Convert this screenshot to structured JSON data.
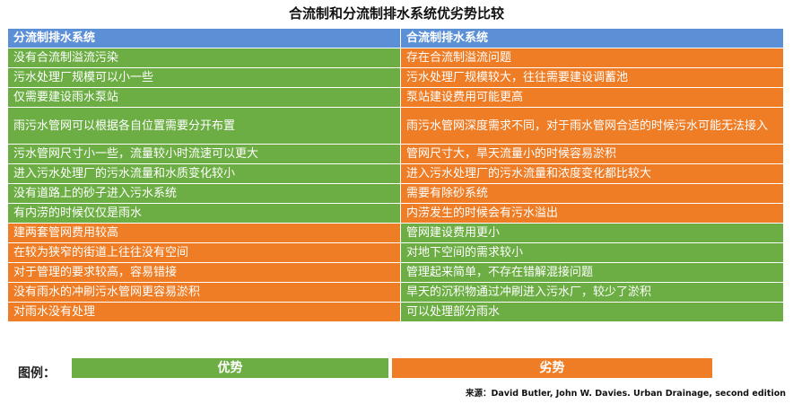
{
  "title": "合流制和分流制排水系统优劣势比较",
  "headers": [
    "分流制排水系统",
    "合流制排水系统"
  ],
  "colors": {
    "advantage": "#6cae44",
    "disadvantage": "#ef7d26",
    "header": "#5b8fd6"
  },
  "rows": [
    {
      "left": "没有合流制溢流污染",
      "left_type": "advantage",
      "right": "存在合流制溢流问题",
      "right_type": "disadvantage"
    },
    {
      "left": "污水处理厂规模可以小一些",
      "left_type": "advantage",
      "right": "污水处理厂规模较大，往往需要建设调蓄池",
      "right_type": "disadvantage"
    },
    {
      "left": "仅需要建设雨水泵站",
      "left_type": "advantage",
      "right": "泵站建设费用可能更高",
      "right_type": "disadvantage"
    },
    {
      "left": "雨污水管网可以根据各自位置需要分开布置",
      "left_type": "advantage",
      "right": "雨污水管网深度需求不同，对于雨水管网合适的时候污水可能无法接入",
      "right_type": "disadvantage"
    },
    {
      "left": "污水管网尺寸小一些，流量较小时流速可以更大",
      "left_type": "advantage",
      "right": "管网尺寸大，旱天流量小的时候容易淤积",
      "right_type": "disadvantage"
    },
    {
      "left": "进入污水处理厂的污水流量和水质变化较小",
      "left_type": "advantage",
      "right": "进入污水处理厂的污水流量和浓度变化都比较大",
      "right_type": "disadvantage"
    },
    {
      "left": "没有道路上的砂子进入污水系统",
      "left_type": "advantage",
      "right": "需要有除砂系统",
      "right_type": "disadvantage"
    },
    {
      "left": "有内涝的时候仅仅是雨水",
      "left_type": "advantage",
      "right": "内涝发生的时候会有污水溢出",
      "right_type": "disadvantage"
    },
    {
      "left": "建两套管网费用较高",
      "left_type": "disadvantage",
      "right": "管网建设费用更小",
      "right_type": "advantage"
    },
    {
      "left": "在较为狭窄的街道上往往没有空间",
      "left_type": "disadvantage",
      "right": "对地下空间的需求较小",
      "right_type": "advantage"
    },
    {
      "left": "对于管理的要求较高，容易错接",
      "left_type": "disadvantage",
      "right": "管理起来简单，不存在错解混接问题",
      "right_type": "advantage"
    },
    {
      "left": "没有雨水的冲刷污水管网更容易淤积",
      "left_type": "disadvantage",
      "right": "旱天的沉积物通过冲刷进入污水厂，较少了淤积",
      "right_type": "advantage"
    },
    {
      "left": "对雨水没有处理",
      "left_type": "disadvantage",
      "right": "可以处理部分雨水",
      "right_type": "advantage"
    }
  ],
  "legend": {
    "label": "图例：",
    "advantage": "优势",
    "disadvantage": "劣势"
  },
  "source": "来源：David Butler, John W. Davies. Urban Drainage, second edition"
}
